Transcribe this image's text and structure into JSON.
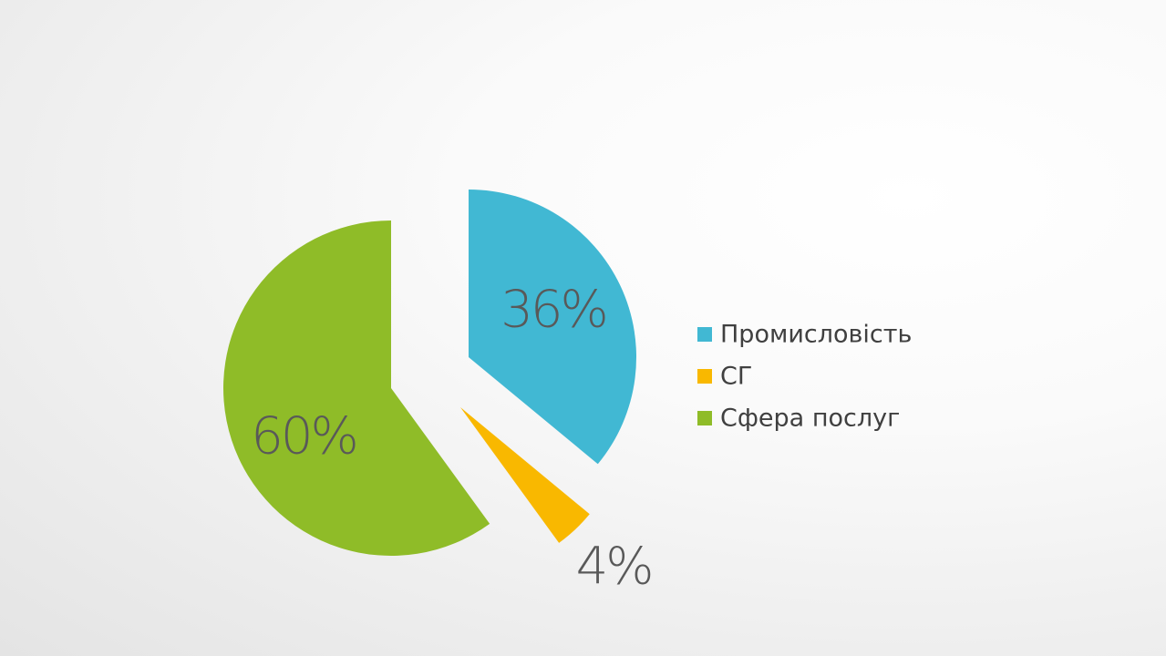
{
  "chart_data": {
    "type": "pie",
    "categories": [
      "Промисловість",
      "СГ",
      "Сфера послуг"
    ],
    "values": [
      36,
      4,
      60
    ],
    "value_labels": [
      "36%",
      "4%",
      "60%"
    ],
    "colors": [
      "#41b8d3",
      "#f9b800",
      "#8fbc28"
    ],
    "legend": "right"
  }
}
